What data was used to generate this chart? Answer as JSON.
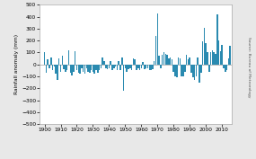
{
  "title": "",
  "ylabel": "Rainfall anomaly (mm)",
  "xlabel": "",
  "bar_color": "#2a8ab0",
  "background_color": "#e8e8e8",
  "plot_bg_color": "#ffffff",
  "source_text": "Source: Bureau of Meteorology",
  "ylim": [
    -500,
    500
  ],
  "yticks": [
    -500,
    -400,
    -300,
    -200,
    -100,
    0,
    100,
    200,
    300,
    400,
    500
  ],
  "xticks": [
    1900,
    1910,
    1920,
    1930,
    1940,
    1950,
    1960,
    1970,
    1980,
    1990,
    2000,
    2010
  ],
  "xlim": [
    1897,
    2016
  ],
  "years": [
    1900,
    1901,
    1902,
    1903,
    1904,
    1905,
    1906,
    1907,
    1908,
    1909,
    1910,
    1911,
    1912,
    1913,
    1914,
    1915,
    1916,
    1917,
    1918,
    1919,
    1920,
    1921,
    1922,
    1923,
    1924,
    1925,
    1926,
    1927,
    1928,
    1929,
    1930,
    1931,
    1932,
    1933,
    1934,
    1935,
    1936,
    1937,
    1938,
    1939,
    1940,
    1941,
    1942,
    1943,
    1944,
    1945,
    1946,
    1947,
    1948,
    1949,
    1950,
    1951,
    1952,
    1953,
    1954,
    1955,
    1956,
    1957,
    1958,
    1959,
    1960,
    1961,
    1962,
    1963,
    1964,
    1965,
    1966,
    1967,
    1968,
    1969,
    1970,
    1971,
    1972,
    1973,
    1974,
    1975,
    1976,
    1977,
    1978,
    1979,
    1980,
    1981,
    1982,
    1983,
    1984,
    1985,
    1986,
    1987,
    1988,
    1989,
    1990,
    1991,
    1992,
    1993,
    1994,
    1995,
    1996,
    1997,
    1998,
    1999,
    2000,
    2001,
    2002,
    2003,
    2004,
    2005,
    2006,
    2007,
    2008,
    2009,
    2010,
    2011,
    2012,
    2013,
    2014,
    2015
  ],
  "values": [
    100,
    -70,
    40,
    -30,
    60,
    -50,
    -20,
    -80,
    -130,
    50,
    -60,
    70,
    -40,
    -60,
    -50,
    120,
    -70,
    -90,
    -60,
    110,
    -50,
    -70,
    -80,
    -30,
    -60,
    -80,
    -30,
    -60,
    -70,
    -50,
    -60,
    -80,
    -50,
    -70,
    -50,
    -30,
    60,
    30,
    -30,
    -40,
    -30,
    30,
    -50,
    -30,
    -20,
    -50,
    30,
    -50,
    60,
    -220,
    -30,
    -60,
    -40,
    -30,
    -50,
    50,
    40,
    -50,
    -30,
    -50,
    -30,
    20,
    -40,
    -30,
    -30,
    -50,
    -50,
    -40,
    30,
    240,
    430,
    70,
    -30,
    80,
    100,
    90,
    80,
    50,
    60,
    40,
    -60,
    -100,
    -110,
    60,
    50,
    -100,
    -100,
    -60,
    80,
    40,
    55,
    -70,
    -110,
    -130,
    -100,
    60,
    -150,
    -70,
    190,
    310,
    175,
    100,
    -60,
    100,
    120,
    105,
    90,
    420,
    200,
    110,
    160,
    -30,
    -60,
    -50,
    50,
    155
  ]
}
